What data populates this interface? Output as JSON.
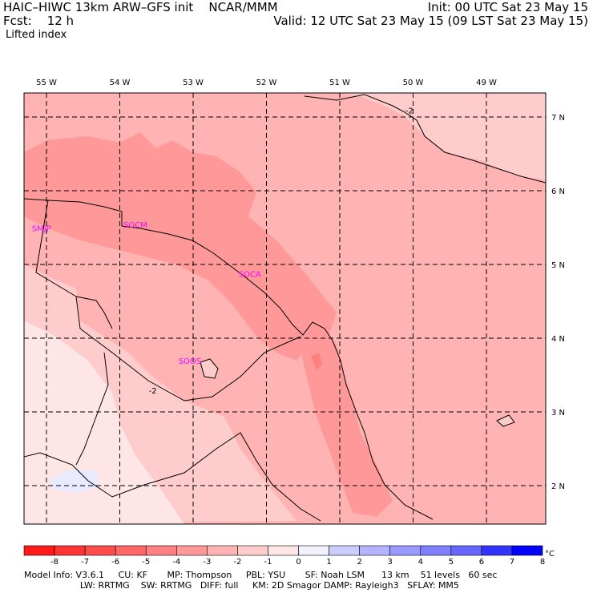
{
  "header": {
    "title_left": "HAIC–HIWC 13km ARW–GFS init    NCAR/MMM",
    "fcst_label": "Fcst:    12 h",
    "field_name": "Lifted index",
    "init": "Init: 00 UTC Sat 23 May 15",
    "valid": "Valid: 12 UTC Sat 23 May 15 (09 LST Sat 23 May 15)"
  },
  "map": {
    "lon_labels": [
      {
        "value": -55,
        "text": "55 W"
      },
      {
        "value": -54,
        "text": "54 W"
      },
      {
        "value": -53,
        "text": "53 W"
      },
      {
        "value": -52,
        "text": "52 W"
      },
      {
        "value": -51,
        "text": "51 W"
      },
      {
        "value": -50,
        "text": "50 W"
      },
      {
        "value": -49,
        "text": "49 W"
      }
    ],
    "lat_labels": [
      {
        "value": 7,
        "text": "7 N"
      },
      {
        "value": 6,
        "text": "6 N"
      },
      {
        "value": 5,
        "text": "5 N"
      },
      {
        "value": 4,
        "text": "4 N"
      },
      {
        "value": 3,
        "text": "3 N"
      },
      {
        "value": 2,
        "text": "2 N"
      }
    ],
    "stations": [
      {
        "id": "SMJP",
        "lon": -55.2,
        "lat": 5.45
      },
      {
        "id": "SOCM",
        "lon": -53.95,
        "lat": 5.5
      },
      {
        "id": "SOCA",
        "lon": -52.38,
        "lat": 4.83
      },
      {
        "id": "SOOS",
        "lon": -53.2,
        "lat": 3.65
      }
    ],
    "contour_labels": [
      {
        "text": "-2",
        "lon": -50.05,
        "lat": 7.05
      },
      {
        "text": "-2",
        "lon": -53.55,
        "lat": 3.25
      }
    ]
  },
  "colorbar": {
    "tick_labels": [
      "-8",
      "-7",
      "-6",
      "-5",
      "-4",
      "-3",
      "-2",
      "-1",
      "0",
      "1",
      "2",
      "3",
      "4",
      "5",
      "6",
      "7",
      "8"
    ],
    "unit": "°C",
    "colors": [
      "#ff1a1a",
      "#ff3333",
      "#ff4d4d",
      "#ff6666",
      "#ff8080",
      "#ff9999",
      "#ffb3b3",
      "#ffcccc",
      "#ffe6e6",
      "#f2f2ff",
      "#ccccff",
      "#b3b3ff",
      "#9999ff",
      "#8080ff",
      "#6666ff",
      "#3333ff",
      "#0000ff"
    ]
  },
  "footer": {
    "line1": "Model Info: V3.6.1     CU: KF       MP: Thompson     PBL: YSU       SF: Noah LSM      13 km    51 levels   60 sec",
    "line2": "                    LW: RRTMG    SW: RRTMG   DIFF: full     KM: 2D Smagor DAMP: Rayleigh3   SFLAY: MM5"
  }
}
